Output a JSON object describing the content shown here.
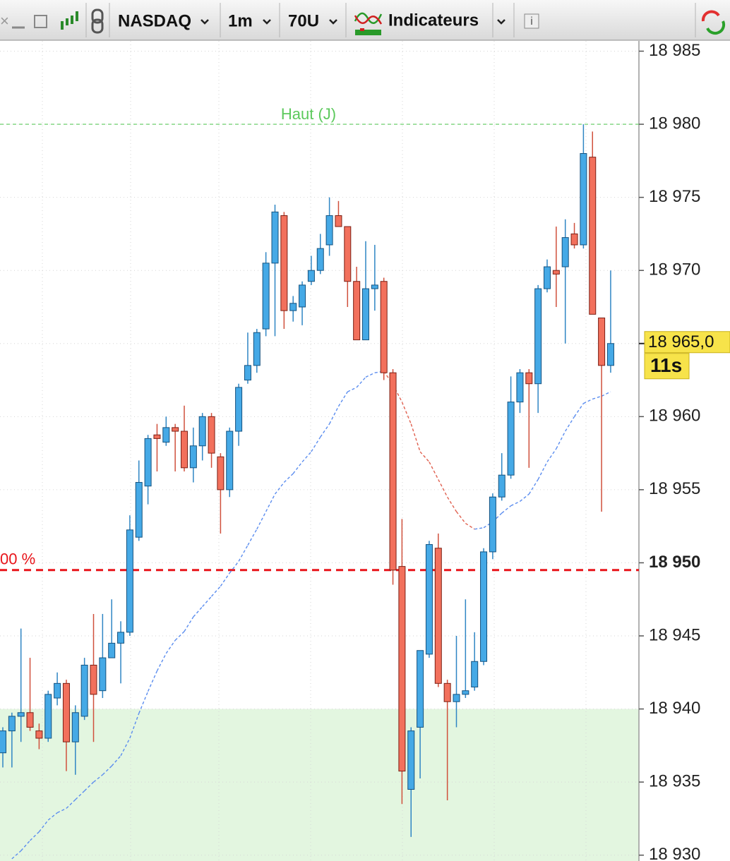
{
  "toolbar": {
    "items": [
      "NASDAQ",
      "1m",
      "70U",
      "Indicateurs"
    ]
  },
  "chart_data": {
    "type": "candlestick",
    "open": [
      18937,
      18938.5,
      18939.5,
      18939.75,
      18938.5,
      18938,
      18940.75,
      18941.75,
      18937.75,
      18939.5,
      18943,
      18941.25,
      18943.5,
      18944.5,
      18945.25,
      18951.75,
      18955.25,
      18958.75,
      18958.25,
      18959.25,
      18959,
      18956.5,
      18958,
      18960,
      18957.25,
      18955,
      18959,
      18962.5,
      18963.5,
      18966,
      18970.5,
      18973.75,
      18967.25,
      18967.5,
      18969.25,
      18970,
      18971.75,
      18973.75,
      18973,
      18969.25,
      18965.25,
      18968.75,
      18969.25,
      18963,
      18949.75,
      18934.5,
      18938.75,
      18943.75,
      18951,
      18941.75,
      18940.5,
      18941,
      18941.5,
      18943.25,
      18950.75,
      18954.5,
      18956,
      18961,
      18963,
      18962.25,
      18968.75,
      18970,
      18970.25,
      18972.5,
      18971.75,
      18977.75,
      18966.75,
      18963.5
    ],
    "high": [
      18938.75,
      18939.75,
      18945.5,
      18943.5,
      18939,
      18941.25,
      18942.5,
      18942,
      18940.25,
      18943.5,
      18946.5,
      18946.5,
      18947.5,
      18946,
      18953.25,
      18957,
      18958.75,
      18959.5,
      18960,
      18959.5,
      18960.75,
      18959.25,
      18960.25,
      18960.25,
      18957.5,
      18959.25,
      18962.25,
      18965.75,
      18966,
      18971.25,
      18974.5,
      18974,
      18968.25,
      18969.25,
      18971,
      18972.5,
      18975,
      18974.75,
      18973,
      18970.25,
      18972,
      18971.75,
      18969.5,
      18963.25,
      18953,
      18938.75,
      18944,
      18951.5,
      18952,
      18942,
      18945,
      18947.5,
      18945.25,
      18951,
      18954.75,
      18957.5,
      18962.75,
      18963.25,
      18963.25,
      18969,
      18970.75,
      18973,
      18973.5,
      18973.25,
      18980,
      18979.5,
      18966.75,
      18970
    ],
    "low": [
      18936,
      18936,
      18937.75,
      18938.5,
      18937.25,
      18937.75,
      18940.25,
      18935.75,
      18935.5,
      18939.25,
      18937.75,
      18940.75,
      18943.5,
      18941.75,
      18945,
      18951.5,
      18954,
      18956.25,
      18958,
      18956.25,
      18956.25,
      18955.5,
      18957,
      18956.5,
      18952,
      18954.5,
      18958,
      18962.25,
      18963,
      18965.5,
      18965.5,
      18966,
      18966.5,
      18966.25,
      18969,
      18969.75,
      18971,
      18973,
      18967.5,
      18965.25,
      18965.25,
      18967.25,
      18962.5,
      18948.5,
      18933.5,
      18931.25,
      18935.25,
      18943.5,
      18941.5,
      18933.75,
      18938.75,
      18940.75,
      18941.25,
      18943,
      18950.25,
      18954.25,
      18955.75,
      18960.25,
      18956.5,
      18960.25,
      18968.5,
      18967.5,
      18965,
      18971.5,
      18971.5,
      18967,
      18953.5,
      18963
    ],
    "close": [
      18938.5,
      18939.5,
      18939.75,
      18938.75,
      18938,
      18941,
      18941.75,
      18937.75,
      18939.75,
      18943,
      18941,
      18943.5,
      18944.5,
      18945.25,
      18952.25,
      18955.5,
      18958.5,
      18958.5,
      18959.25,
      18959,
      18956.5,
      18958,
      18960,
      18957.5,
      18955,
      18959,
      18962,
      18963.5,
      18965.75,
      18970.5,
      18974,
      18967.25,
      18967.75,
      18969,
      18970,
      18971.5,
      18973.75,
      18973,
      18969.25,
      18965.25,
      18968.75,
      18969,
      18963,
      18949.5,
      18935.75,
      18938.5,
      18944,
      18951.25,
      18941.75,
      18940.5,
      18941,
      18941.25,
      18943.25,
      18950.75,
      18954.5,
      18956,
      18961,
      18963,
      18962.25,
      18968.75,
      18970.25,
      18969.75,
      18972.25,
      18971.75,
      18978,
      18967,
      18963.5,
      18965
    ],
    "colors": {
      "up": "#45a9e6",
      "up_edge": "#15527f",
      "down": "#f2705c",
      "down_edge": "#7a1f14"
    },
    "ma": {
      "values": [
        null,
        18929.75,
        18930.3,
        18931.0,
        18931.6,
        18932.4,
        18932.9,
        18933.2,
        18933.8,
        18934.4,
        18935.0,
        18935.5,
        18936.1,
        18936.8,
        18938.0,
        18939.7,
        18941.2,
        18942.6,
        18943.8,
        18944.7,
        18945.3,
        18946.3,
        18947.0,
        18947.7,
        18948.4,
        18949.3,
        18950.1,
        18951.2,
        18952.3,
        18953.5,
        18954.7,
        18955.5,
        18956.1,
        18956.9,
        18957.6,
        18958.6,
        18959.5,
        18960.7,
        18961.7,
        18962.0,
        18962.7,
        18963.0,
        18963.1,
        18962.2,
        18961.0,
        18959.5,
        18957.6,
        18956.9,
        18955.7,
        18954.5,
        18953.5,
        18952.7,
        18952.3,
        18952.4,
        18952.8,
        18953.4,
        18953.9,
        18954.2,
        18954.7,
        18955.7,
        18956.9,
        18957.8,
        18959.0,
        18960.0,
        18960.9,
        18961.2,
        18961.4,
        18961.7
      ],
      "colors": {
        "up": "#5b8def",
        "down": "#e0604f"
      }
    },
    "hlines": [
      {
        "value": 18980,
        "label": "Haut (J)",
        "color": "#5cc95c"
      },
      {
        "value": 18949.5,
        "label": "00 %",
        "color": "#e8141a"
      }
    ],
    "zone": {
      "top": 18940,
      "color": "#e3f6e0"
    },
    "current_price": {
      "value": 18965.0,
      "label": "18 965,0",
      "countdown": "11s"
    },
    "ylim": [
      18929.6,
      18985.7
    ],
    "yticks": [
      {
        "value": 18985,
        "label": "18 985"
      },
      {
        "value": 18980,
        "label": "18 980"
      },
      {
        "value": 18975,
        "label": "18 975"
      },
      {
        "value": 18970,
        "label": "18 970"
      },
      {
        "value": 18965,
        "label": "18 965"
      },
      {
        "value": 18960,
        "label": "18 960"
      },
      {
        "value": 18955,
        "label": "18 955"
      },
      {
        "value": 18950,
        "label": "18 950",
        "bold": true
      },
      {
        "value": 18945,
        "label": "18 945"
      },
      {
        "value": 18940,
        "label": "18 940"
      },
      {
        "value": 18935,
        "label": "18 935"
      },
      {
        "value": 18930,
        "label": "18 930"
      }
    ],
    "grid": true
  }
}
